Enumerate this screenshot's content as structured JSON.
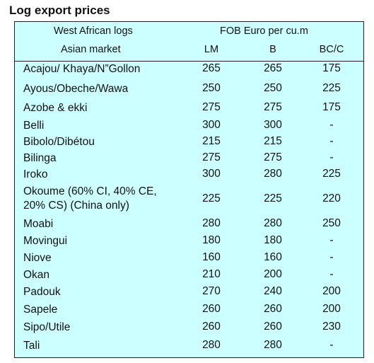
{
  "title": "Log export prices",
  "header": {
    "group1": "West African logs",
    "group2": "Asian market",
    "price_header": "FOB Euro per cu.m",
    "col_lm": "LM",
    "col_b": "B",
    "col_bc": "BC/C"
  },
  "rows": [
    {
      "name": "Acajou/ Khaya/N”Gollon",
      "lm": "265",
      "b": "265",
      "bc": "175"
    },
    {
      "name": "Ayous/Obeche/Wawa",
      "lm": "250",
      "b": "250",
      "bc": "225"
    },
    {
      "name": "Azobe & ekki",
      "lm": "275",
      "b": "275",
      "bc": "175"
    },
    {
      "name": "Belli",
      "lm": "300",
      "b": "300",
      "bc": "-"
    },
    {
      "name": "Bibolo/Dibétou",
      "lm": "215",
      "b": "215",
      "bc": "-"
    },
    {
      "name": "Bilinga",
      "lm": "275",
      "b": "275",
      "bc": "-"
    },
    {
      "name": "Iroko",
      "lm": "300",
      "b": "280",
      "bc": "225"
    },
    {
      "name": "Okoume (60% CI, 40% CE,\n20% CS) (China only)",
      "lm": "225",
      "b": "225",
      "bc": "220"
    },
    {
      "name": "Moabi",
      "lm": "280",
      "b": "280",
      "bc": "250"
    },
    {
      "name": "Movingui",
      "lm": "180",
      "b": "180",
      "bc": "-"
    },
    {
      "name": "Niove",
      "lm": "160",
      "b": "160",
      "bc": "-"
    },
    {
      "name": "Okan",
      "lm": "210",
      "b": "200",
      "bc": "-"
    },
    {
      "name": "Padouk",
      "lm": "270",
      "b": "240",
      "bc": "200"
    },
    {
      "name": "Sapele",
      "lm": "260",
      "b": "260",
      "bc": "200"
    },
    {
      "name": "Sipo/Utile",
      "lm": "260",
      "b": "260",
      "bc": "230"
    },
    {
      "name": "Tali",
      "lm": "280",
      "b": "280",
      "bc": "-"
    }
  ]
}
